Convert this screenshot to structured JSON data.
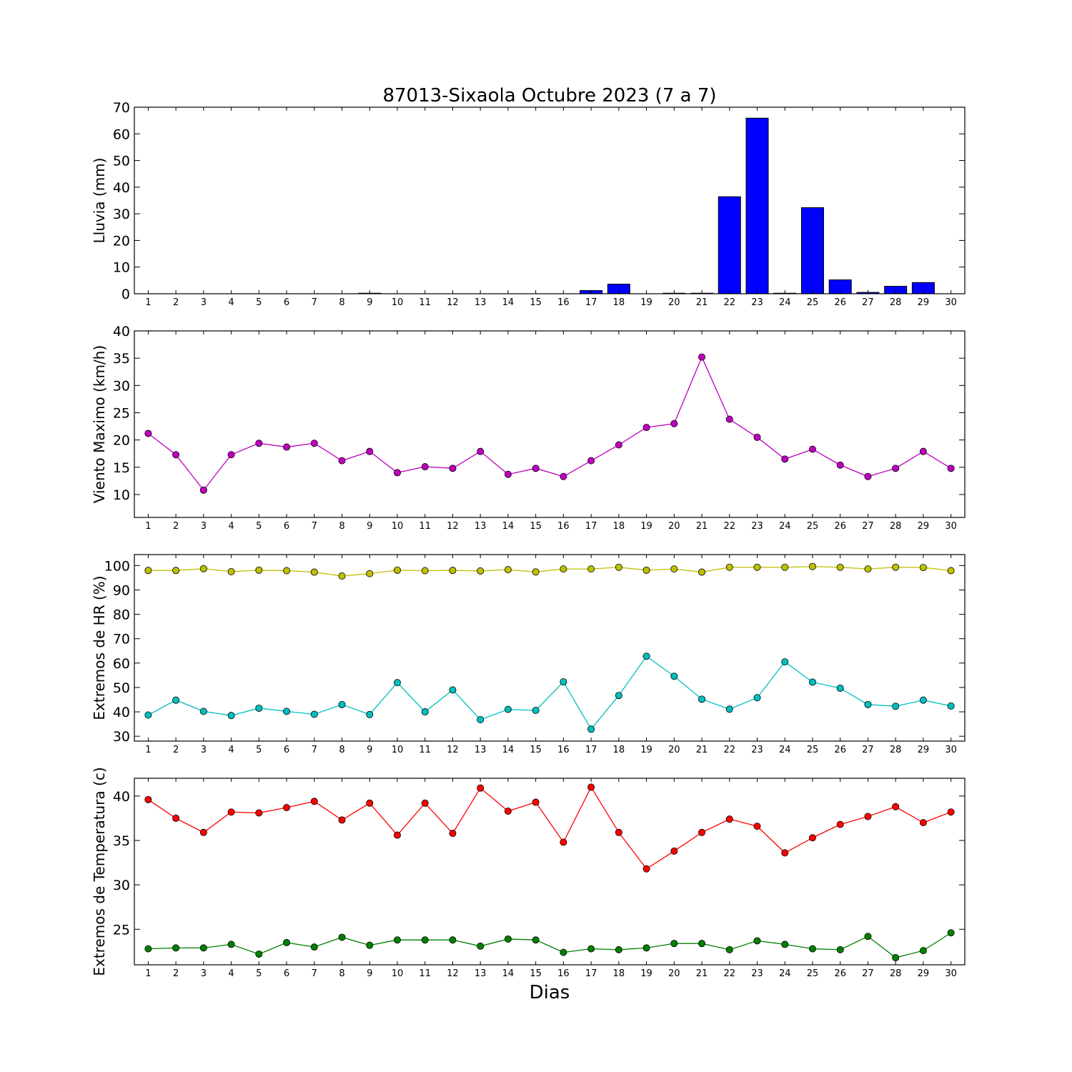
{
  "figure": {
    "title": "87013-Sixaola Octubre 2023  (7 a 7)",
    "xlabel": "Dias"
  },
  "chart_data": [
    {
      "type": "bar",
      "name": "lluvia",
      "ylabel": "Lluvia (mm)",
      "ylim": [
        0,
        70
      ],
      "yticks": [
        0,
        10,
        20,
        30,
        40,
        50,
        60,
        70
      ],
      "categories": [
        1,
        2,
        3,
        4,
        5,
        6,
        7,
        8,
        9,
        10,
        11,
        12,
        13,
        14,
        15,
        16,
        17,
        18,
        19,
        20,
        21,
        22,
        23,
        24,
        25,
        26,
        27,
        28,
        29,
        30
      ],
      "values": [
        0,
        0,
        0,
        0,
        0,
        0,
        0,
        0,
        0.2,
        0,
        0,
        0,
        0,
        0,
        0,
        0,
        1.2,
        3.6,
        0,
        0.2,
        0.2,
        36.4,
        65.9,
        0.2,
        32.3,
        5.2,
        0.5,
        2.8,
        4.2,
        0
      ],
      "color": "#0000ff",
      "grid": false
    },
    {
      "type": "line",
      "name": "viento",
      "ylabel": "Viento Maximo (km/h)",
      "ylim": [
        5.8,
        40
      ],
      "yticks": [
        10,
        15,
        20,
        25,
        30,
        35,
        40
      ],
      "x": [
        1,
        2,
        3,
        4,
        5,
        6,
        7,
        8,
        9,
        10,
        11,
        12,
        13,
        14,
        15,
        16,
        17,
        18,
        19,
        20,
        21,
        22,
        23,
        24,
        25,
        26,
        27,
        28,
        29,
        30
      ],
      "series": [
        {
          "color": "#bf00bf",
          "values": [
            21.2,
            17.3,
            10.8,
            17.3,
            19.4,
            18.7,
            19.4,
            16.2,
            17.9,
            14.0,
            15.1,
            14.8,
            17.9,
            13.7,
            14.8,
            13.3,
            16.2,
            19.1,
            22.3,
            23.0,
            35.2,
            23.8,
            20.5,
            16.5,
            18.3,
            15.4,
            13.3,
            14.8,
            17.9,
            14.8
          ]
        }
      ],
      "grid": false
    },
    {
      "type": "line",
      "name": "humedad",
      "ylabel": "Extremos de HR (%)",
      "ylim": [
        28,
        104.5
      ],
      "yticks": [
        30,
        40,
        50,
        60,
        70,
        80,
        90,
        100
      ],
      "x": [
        1,
        2,
        3,
        4,
        5,
        6,
        7,
        8,
        9,
        10,
        11,
        12,
        13,
        14,
        15,
        16,
        17,
        18,
        19,
        20,
        21,
        22,
        23,
        24,
        25,
        26,
        27,
        28,
        29,
        30
      ],
      "series": [
        {
          "color": "#bfbf00",
          "values": [
            98.0,
            98.0,
            98.7,
            97.5,
            98.1,
            97.9,
            97.3,
            95.7,
            96.7,
            98.1,
            97.9,
            98.0,
            97.8,
            98.3,
            97.4,
            98.6,
            98.6,
            99.3,
            98.1,
            98.6,
            97.3,
            99.3,
            99.3,
            99.3,
            99.6,
            99.3,
            98.6,
            99.3,
            99.2,
            97.9
          ]
        },
        {
          "color": "#00bfbf",
          "values": [
            38.7,
            44.8,
            40.2,
            38.5,
            41.5,
            40.2,
            39.0,
            43.0,
            38.9,
            52.0,
            40.0,
            49.0,
            36.8,
            41.0,
            40.6,
            52.3,
            32.9,
            46.7,
            62.8,
            54.6,
            45.2,
            41.1,
            45.8,
            60.5,
            52.2,
            49.7,
            43.0,
            42.3,
            44.8,
            42.4
          ]
        }
      ],
      "grid": false
    },
    {
      "type": "line",
      "name": "temperatura",
      "ylabel": "Extremos de Temperatura (c)",
      "ylim": [
        21,
        42
      ],
      "yticks": [
        25,
        30,
        35,
        40
      ],
      "x": [
        1,
        2,
        3,
        4,
        5,
        6,
        7,
        8,
        9,
        10,
        11,
        12,
        13,
        14,
        15,
        16,
        17,
        18,
        19,
        20,
        21,
        22,
        23,
        24,
        25,
        26,
        27,
        28,
        29,
        30
      ],
      "series": [
        {
          "color": "#ff0000",
          "values": [
            39.6,
            37.5,
            35.9,
            38.2,
            38.1,
            38.7,
            39.4,
            37.3,
            39.2,
            35.6,
            39.2,
            35.8,
            40.9,
            38.3,
            39.3,
            34.8,
            41.0,
            35.9,
            31.8,
            33.8,
            35.9,
            37.4,
            36.6,
            33.6,
            35.3,
            36.8,
            37.7,
            38.8,
            37.0,
            38.2
          ]
        },
        {
          "color": "#008000",
          "values": [
            22.8,
            22.9,
            22.9,
            23.3,
            22.2,
            23.5,
            23.0,
            24.1,
            23.2,
            23.8,
            23.8,
            23.8,
            23.1,
            23.9,
            23.8,
            22.4,
            22.8,
            22.7,
            22.9,
            23.4,
            23.4,
            22.7,
            23.7,
            23.3,
            22.8,
            22.7,
            24.2,
            21.8,
            22.6,
            24.6
          ]
        }
      ],
      "grid": false
    }
  ]
}
